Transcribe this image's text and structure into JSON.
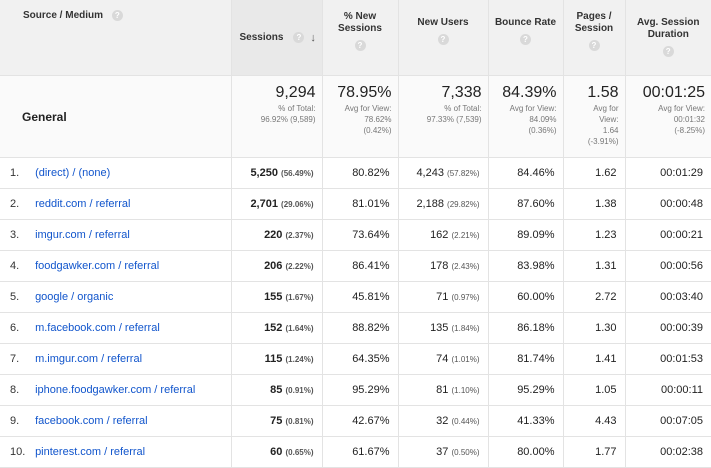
{
  "header": {
    "source": "Source / Medium",
    "sessions": "Sessions",
    "new_sessions_1": "% New",
    "new_sessions_2": "Sessions",
    "new_users": "New Users",
    "bounce_rate": "Bounce Rate",
    "pages_1": "Pages /",
    "pages_2": "Session",
    "duration_1": "Avg. Session",
    "duration_2": "Duration",
    "help_glyph": "?",
    "sort_glyph": "↓"
  },
  "summary": {
    "label": "General",
    "sessions": {
      "value": "9,294",
      "sub1": "% of Total:",
      "sub2": "96.92% (9,589)"
    },
    "new_sessions": {
      "value": "78.95%",
      "sub1": "Avg for View:",
      "sub2": "78.62%",
      "sub3": "(0.42%)"
    },
    "new_users": {
      "value": "7,338",
      "sub1": "% of Total:",
      "sub2": "97.33% (7,539)"
    },
    "bounce_rate": {
      "value": "84.39%",
      "sub1": "Avg for View:",
      "sub2": "84.09%",
      "sub3": "(0.36%)"
    },
    "pages": {
      "value": "1.58",
      "sub1": "Avg for",
      "sub2": "View:",
      "sub3": "1.64",
      "sub4": "(-3.91%)"
    },
    "duration": {
      "value": "00:01:25",
      "sub1": "Avg for View:",
      "sub2": "00:01:32",
      "sub3": "(-8.25%)"
    }
  },
  "rows": [
    {
      "idx": "1.",
      "source": "(direct) / (none)",
      "sessions": "5,250",
      "sessions_pct": "(56.49%)",
      "new_sessions": "80.82%",
      "new_users": "4,243",
      "new_users_pct": "(57.82%)",
      "bounce_rate": "84.46%",
      "pages": "1.62",
      "duration": "00:01:29"
    },
    {
      "idx": "2.",
      "source": "reddit.com / referral",
      "sessions": "2,701",
      "sessions_pct": "(29.06%)",
      "new_sessions": "81.01%",
      "new_users": "2,188",
      "new_users_pct": "(29.82%)",
      "bounce_rate": "87.60%",
      "pages": "1.38",
      "duration": "00:00:48"
    },
    {
      "idx": "3.",
      "source": "imgur.com / referral",
      "sessions": "220",
      "sessions_pct": "(2.37%)",
      "new_sessions": "73.64%",
      "new_users": "162",
      "new_users_pct": "(2.21%)",
      "bounce_rate": "89.09%",
      "pages": "1.23",
      "duration": "00:00:21"
    },
    {
      "idx": "4.",
      "source": "foodgawker.com / referral",
      "sessions": "206",
      "sessions_pct": "(2.22%)",
      "new_sessions": "86.41%",
      "new_users": "178",
      "new_users_pct": "(2.43%)",
      "bounce_rate": "83.98%",
      "pages": "1.31",
      "duration": "00:00:56"
    },
    {
      "idx": "5.",
      "source": "google / organic",
      "sessions": "155",
      "sessions_pct": "(1.67%)",
      "new_sessions": "45.81%",
      "new_users": "71",
      "new_users_pct": "(0.97%)",
      "bounce_rate": "60.00%",
      "pages": "2.72",
      "duration": "00:03:40"
    },
    {
      "idx": "6.",
      "source": "m.facebook.com / referral",
      "sessions": "152",
      "sessions_pct": "(1.64%)",
      "new_sessions": "88.82%",
      "new_users": "135",
      "new_users_pct": "(1.84%)",
      "bounce_rate": "86.18%",
      "pages": "1.30",
      "duration": "00:00:39"
    },
    {
      "idx": "7.",
      "source": "m.imgur.com / referral",
      "sessions": "115",
      "sessions_pct": "(1.24%)",
      "new_sessions": "64.35%",
      "new_users": "74",
      "new_users_pct": "(1.01%)",
      "bounce_rate": "81.74%",
      "pages": "1.41",
      "duration": "00:01:53"
    },
    {
      "idx": "8.",
      "source": "iphone.foodgawker.com / referral",
      "sessions": "85",
      "sessions_pct": "(0.91%)",
      "new_sessions": "95.29%",
      "new_users": "81",
      "new_users_pct": "(1.10%)",
      "bounce_rate": "95.29%",
      "pages": "1.05",
      "duration": "00:00:11"
    },
    {
      "idx": "9.",
      "source": "facebook.com / referral",
      "sessions": "75",
      "sessions_pct": "(0.81%)",
      "new_sessions": "42.67%",
      "new_users": "32",
      "new_users_pct": "(0.44%)",
      "bounce_rate": "41.33%",
      "pages": "4.43",
      "duration": "00:07:05"
    },
    {
      "idx": "10.",
      "source": "pinterest.com / referral",
      "sessions": "60",
      "sessions_pct": "(0.65%)",
      "new_sessions": "61.67%",
      "new_users": "37",
      "new_users_pct": "(0.50%)",
      "bounce_rate": "80.00%",
      "pages": "1.77",
      "duration": "00:02:38"
    }
  ]
}
